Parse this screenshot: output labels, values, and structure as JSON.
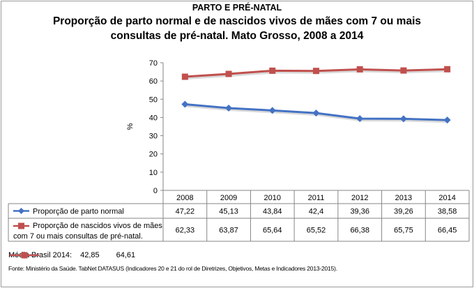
{
  "heading": "PARTO E PRÉ-NATAL",
  "title": "Proporção de parto normal e de nascidos vivos de mães com 7 ou mais consultas de pré-natal. Mato Grosso, 2008 a 2014",
  "chart_data": {
    "type": "line",
    "title": "Proporção de parto normal e de nascidos vivos de mães com 7 ou mais consultas de pré-natal. Mato Grosso, 2008 a 2014",
    "ylabel": "%",
    "ylim": [
      0,
      70
    ],
    "yticks": [
      "0",
      "10",
      "20",
      "30",
      "40",
      "50",
      "60",
      "70"
    ],
    "categories": [
      "2008",
      "2009",
      "2010",
      "2011",
      "2012",
      "2013",
      "2014"
    ],
    "grid": false,
    "series": [
      {
        "name": "Proporção de parto normal",
        "name_lines": [
          "Proporção de parto normal"
        ],
        "color": "#4472c4",
        "marker": "diamond",
        "values": [
          47.22,
          45.13,
          43.84,
          42.4,
          39.36,
          39.26,
          38.58
        ],
        "labels": [
          "47,22",
          "45,13",
          "43,84",
          "42,4",
          "39,36",
          "39,26",
          "38,58"
        ]
      },
      {
        "name": "Proporção de nascidos vivos de mães com 7 ou mais consultas de pré-natal.",
        "name_lines": [
          "Proporção de nascidos vivos de mães",
          "com 7 ou mais consultas de pré-natal."
        ],
        "color": "#c0504d",
        "marker": "square",
        "values": [
          62.33,
          63.87,
          65.64,
          65.52,
          66.38,
          65.75,
          66.45
        ],
        "labels": [
          "62,33",
          "63,87",
          "65,64",
          "65,52",
          "66,38",
          "65,75",
          "66,45"
        ]
      }
    ]
  },
  "legend": {
    "label": "Média Brasil 2014:",
    "items": [
      {
        "value": "42,85",
        "color": "#4472c4",
        "marker": "diamond"
      },
      {
        "value": "64,61",
        "color": "#c0504d",
        "marker": "square"
      }
    ]
  },
  "source": "Fonte: Ministério da Saúde. TabNet DATASUS (Indicadores 20 e 21 do rol de Diretrizes, Objetivos, Metas e Indicadores 2013-2015)."
}
